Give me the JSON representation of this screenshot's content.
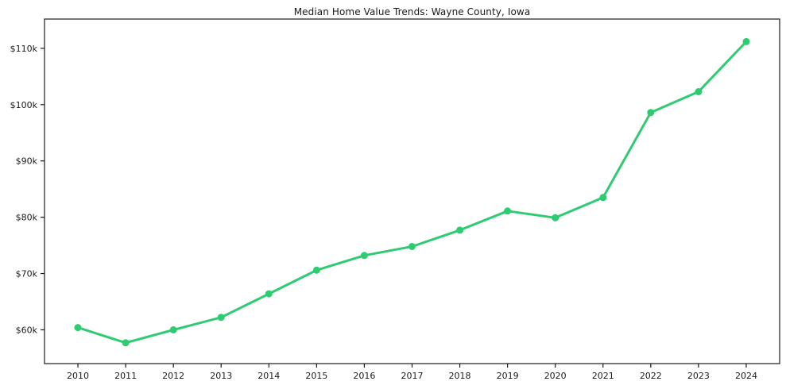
{
  "title": "Median Home Value Trends: Wayne County, Iowa",
  "chart_data": {
    "type": "line",
    "title": "Median Home Value Trends: Wayne County, Iowa",
    "x": [
      2010,
      2011,
      2012,
      2013,
      2014,
      2015,
      2016,
      2017,
      2018,
      2019,
      2020,
      2021,
      2022,
      2023,
      2024
    ],
    "series": [
      {
        "name": "Median Home Value",
        "values": [
          60400,
          57700,
          60000,
          62200,
          66400,
          70600,
          73200,
          74800,
          77700,
          81100,
          79900,
          83500,
          98600,
          102300,
          111200
        ]
      }
    ],
    "xlabel": "",
    "ylabel": "",
    "xtick_labels": [
      "2010",
      "2011",
      "2012",
      "2013",
      "2014",
      "2015",
      "2016",
      "2017",
      "2018",
      "2019",
      "2020",
      "2021",
      "2022",
      "2023",
      "2024"
    ],
    "ytick_values": [
      60000,
      70000,
      80000,
      90000,
      100000,
      110000
    ],
    "ytick_labels": [
      "$60k",
      "$70k",
      "$80k",
      "$90k",
      "$100k",
      "$110k"
    ],
    "ylim": [
      54000,
      115200
    ],
    "x_margin": 0.7,
    "grid": false,
    "legend": "none",
    "line_color": "#2ecc71",
    "marker_color": "#2ecc71",
    "axis_color": "#1a1a1a",
    "background": "#ffffff"
  }
}
